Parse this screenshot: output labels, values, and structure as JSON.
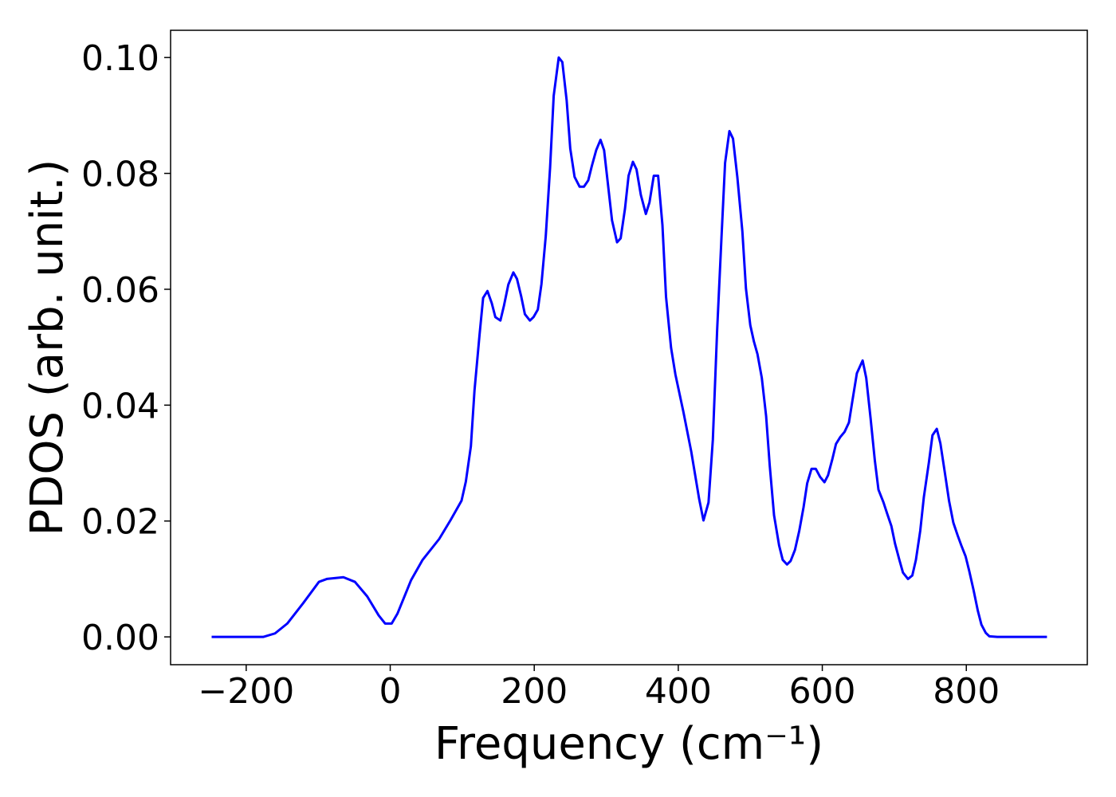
{
  "chart_data": {
    "type": "line",
    "xlabel": "Frequency (cm⁻¹)",
    "ylabel": "PDOS (arb. unit.)",
    "color": "#0000ff",
    "xlim": [
      -305,
      968
    ],
    "ylim": [
      -0.0048,
      0.1047
    ],
    "xticks": [
      {
        "value": -200,
        "label": "−200"
      },
      0,
      200,
      400,
      600,
      800
    ],
    "yticks": [
      {
        "value": 0,
        "label": "0.00"
      },
      {
        "value": 0.02,
        "label": "0.02"
      },
      {
        "value": 0.04,
        "label": "0.04"
      },
      {
        "value": 0.06,
        "label": "0.06"
      },
      {
        "value": 0.08,
        "label": "0.08"
      },
      {
        "value": 0.1,
        "label": "0.10"
      }
    ],
    "x": [
      -248,
      -176,
      -160,
      -143,
      -121,
      -99,
      -88,
      -65,
      -49,
      -32,
      -16,
      -7,
      2,
      10,
      29,
      45,
      68,
      84,
      99,
      105,
      112,
      117,
      124,
      129,
      135,
      141,
      146,
      153,
      158,
      164,
      171,
      176,
      182,
      187,
      194,
      199,
      205,
      210,
      216,
      222,
      227,
      234,
      239,
      245,
      250,
      256,
      263,
      269,
      275,
      280,
      286,
      292,
      297,
      302,
      308,
      315,
      320,
      326,
      331,
      337,
      342,
      348,
      355,
      360,
      366,
      372,
      378,
      383,
      390,
      396,
      407,
      418,
      429,
      435,
      442,
      448,
      454,
      460,
      465,
      471,
      476,
      482,
      489,
      494,
      500,
      505,
      510,
      516,
      522,
      527,
      533,
      540,
      545,
      551,
      556,
      562,
      568,
      574,
      579,
      585,
      591,
      597,
      603,
      608,
      614,
      619,
      625,
      631,
      637,
      642,
      648,
      656,
      661,
      667,
      673,
      678,
      685,
      690,
      696,
      701,
      707,
      712,
      719,
      725,
      730,
      736,
      741,
      748,
      753,
      759,
      764,
      770,
      776,
      782,
      788,
      793,
      799,
      804,
      810,
      816,
      821,
      827,
      832,
      843,
      912
    ],
    "values": [
      0,
      0,
      0.0006,
      0.0023,
      0.0058,
      0.0095,
      0.01,
      0.0103,
      0.0095,
      0.007,
      0.0037,
      0.0023,
      0.0023,
      0.004,
      0.0098,
      0.0133,
      0.0169,
      0.0202,
      0.0235,
      0.0268,
      0.0329,
      0.0425,
      0.0521,
      0.0585,
      0.0597,
      0.0576,
      0.0552,
      0.0546,
      0.0572,
      0.0608,
      0.0629,
      0.0618,
      0.0587,
      0.0557,
      0.0546,
      0.0552,
      0.0565,
      0.0609,
      0.0692,
      0.081,
      0.0934,
      0.1,
      0.0992,
      0.0926,
      0.0843,
      0.0794,
      0.0777,
      0.0777,
      0.0788,
      0.0813,
      0.084,
      0.0858,
      0.084,
      0.0785,
      0.0719,
      0.0681,
      0.0688,
      0.0739,
      0.0796,
      0.082,
      0.0807,
      0.0763,
      0.073,
      0.075,
      0.0796,
      0.0796,
      0.0711,
      0.0587,
      0.0499,
      0.0453,
      0.0389,
      0.032,
      0.0238,
      0.0201,
      0.0232,
      0.034,
      0.053,
      0.0689,
      0.0818,
      0.0873,
      0.086,
      0.0794,
      0.07,
      0.0601,
      0.0538,
      0.051,
      0.0488,
      0.0447,
      0.0381,
      0.0296,
      0.021,
      0.0158,
      0.0133,
      0.0125,
      0.0131,
      0.015,
      0.0183,
      0.0224,
      0.0265,
      0.029,
      0.029,
      0.0276,
      0.0267,
      0.0279,
      0.0307,
      0.0333,
      0.0345,
      0.0354,
      0.037,
      0.0409,
      0.0455,
      0.0477,
      0.0447,
      0.0378,
      0.0304,
      0.0254,
      0.0232,
      0.0213,
      0.0191,
      0.0161,
      0.0133,
      0.0111,
      0.01,
      0.0106,
      0.0133,
      0.0183,
      0.0241,
      0.0301,
      0.0348,
      0.0359,
      0.0334,
      0.0285,
      0.0235,
      0.0197,
      0.0175,
      0.0158,
      0.0139,
      0.0114,
      0.0081,
      0.0045,
      0.0021,
      0.0007,
      0.0001,
      0,
      0
    ]
  }
}
